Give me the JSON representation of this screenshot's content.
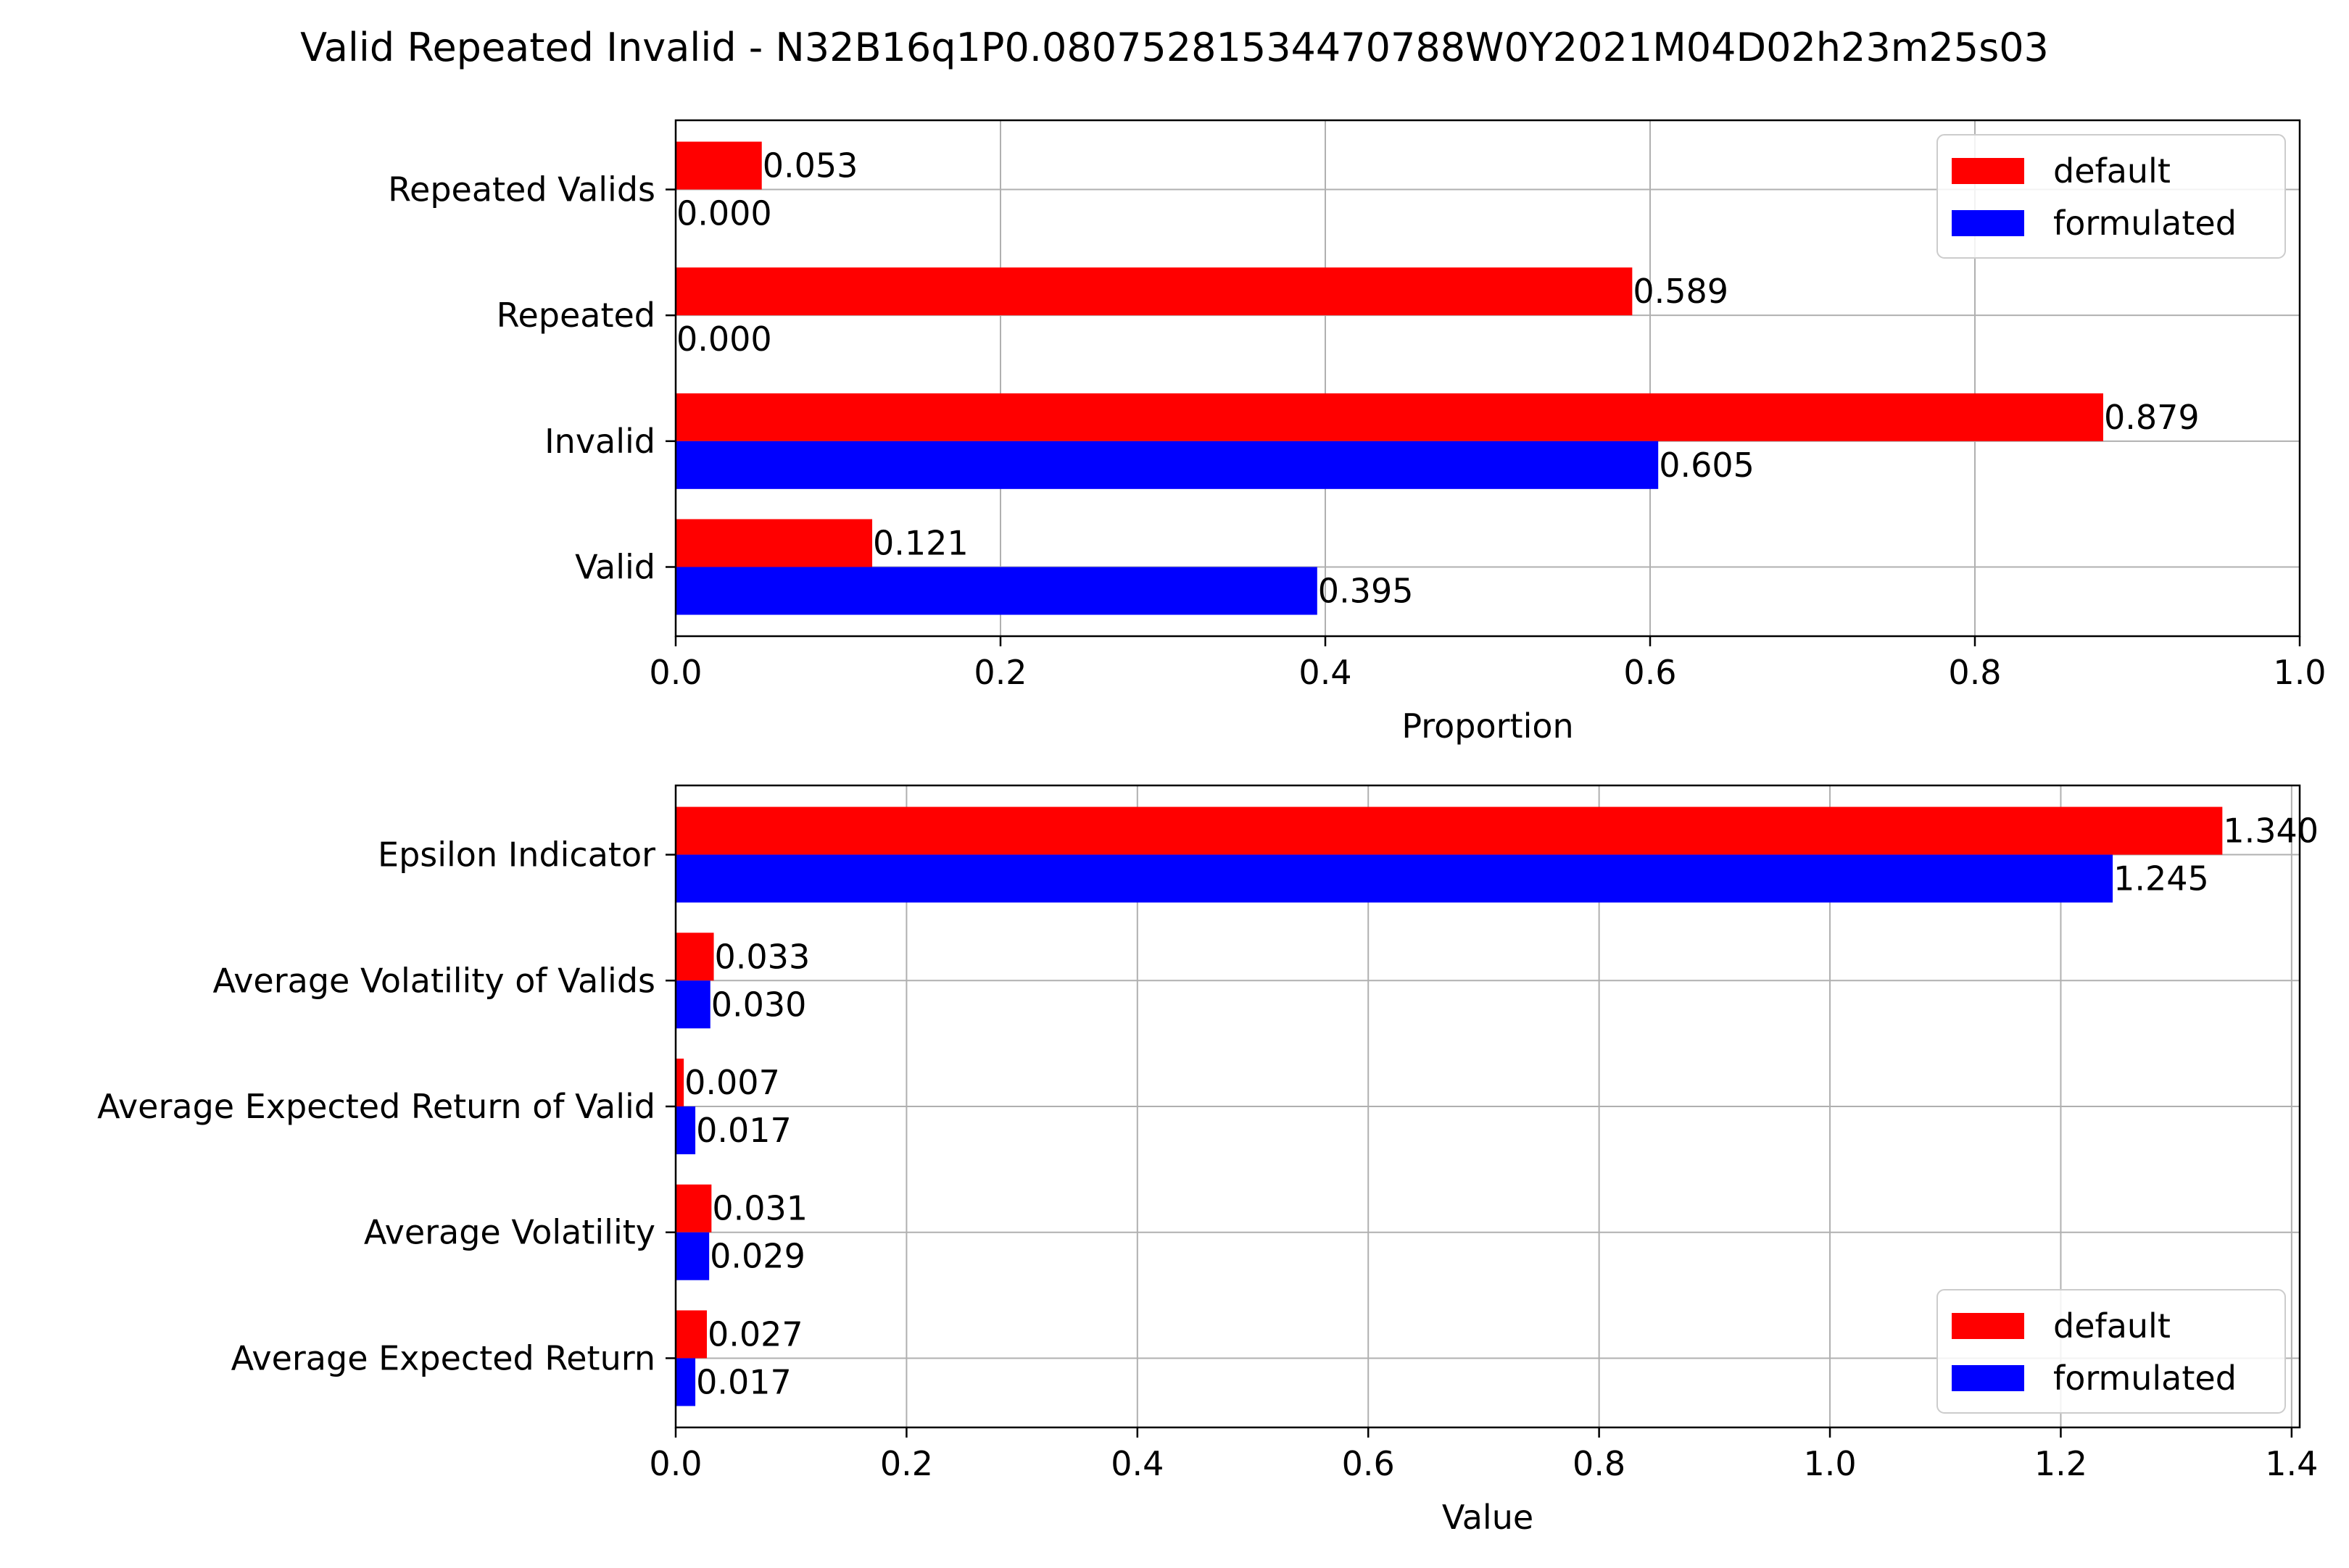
{
  "figure": {
    "title": "Valid Repeated Invalid - N32B16q1P0.08075281534470788W0Y2021M04D02h23m25s03"
  },
  "colors": {
    "default": "#ff0000",
    "formulated": "#0000ff",
    "grid": "#b0b0b0",
    "axis": "#000000"
  },
  "chart_data": [
    {
      "type": "bar",
      "orientation": "horizontal",
      "categories": [
        "Valid",
        "Invalid",
        "Repeated",
        "Repeated Valids"
      ],
      "series": [
        {
          "name": "default",
          "values": [
            0.121,
            0.879,
            0.589,
            0.053
          ],
          "labels": [
            "0.121",
            "0.879",
            "0.589",
            "0.053"
          ]
        },
        {
          "name": "formulated",
          "values": [
            0.395,
            0.605,
            0.0,
            0.0
          ],
          "labels": [
            "0.395",
            "0.605",
            "0.000",
            "0.000"
          ]
        }
      ],
      "xlabel": "Proportion",
      "ylabel": "",
      "xlim": [
        0,
        1.0
      ],
      "xticks": [
        0.0,
        0.2,
        0.4,
        0.6,
        0.8,
        1.0
      ],
      "xtick_labels": [
        "0.0",
        "0.2",
        "0.4",
        "0.6",
        "0.8",
        "1.0"
      ],
      "grid": true,
      "legend": "top-right"
    },
    {
      "type": "bar",
      "orientation": "horizontal",
      "categories": [
        "Average Expected Return",
        "Average Volatility",
        "Average Expected Return of Valid",
        "Average Volatility of Valids",
        "Epsilon Indicator"
      ],
      "series": [
        {
          "name": "default",
          "values": [
            0.027,
            0.031,
            0.007,
            0.033,
            1.34
          ],
          "labels": [
            "0.027",
            "0.031",
            "0.007",
            "0.033",
            "1.340"
          ]
        },
        {
          "name": "formulated",
          "values": [
            0.017,
            0.029,
            0.017,
            0.03,
            1.245
          ],
          "labels": [
            "0.017",
            "0.029",
            "0.017",
            "0.030",
            "1.245"
          ]
        }
      ],
      "xlabel": "Value",
      "ylabel": "",
      "xlim": [
        0,
        1.407
      ],
      "xticks": [
        0.0,
        0.2,
        0.4,
        0.6,
        0.8,
        1.0,
        1.2,
        1.4
      ],
      "xtick_labels": [
        "0.0",
        "0.2",
        "0.4",
        "0.6",
        "0.8",
        "1.0",
        "1.2",
        "1.4"
      ],
      "grid": true,
      "legend": "bottom-right"
    }
  ]
}
